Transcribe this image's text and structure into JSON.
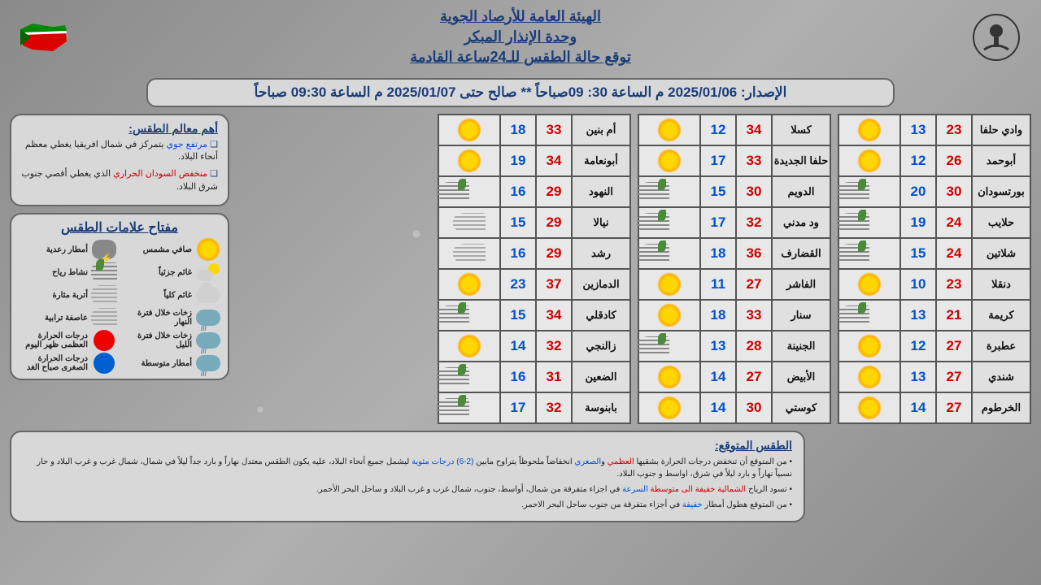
{
  "header": {
    "title1": "الهيئة العامة للأرصاد الجوية",
    "title2": "وحدة الإنذار المبكر",
    "title3": "توقع حالة الطقس للـ24ساعة القادمة"
  },
  "issue": "الإصدار: 2025/01/06 م الساعة 30: 09صباحاً ** صالح حتى 2025/01/07 م الساعة 09:30 صباحاً",
  "col1": [
    {
      "city": "وادي حلفا",
      "hi": 23,
      "lo": 13,
      "ic": "sun"
    },
    {
      "city": "أبوحمد",
      "hi": 26,
      "lo": 12,
      "ic": "sun"
    },
    {
      "city": "بورتسودان",
      "hi": 30,
      "lo": 20,
      "ic": "wind"
    },
    {
      "city": "حلايب",
      "hi": 24,
      "lo": 19,
      "ic": "wind"
    },
    {
      "city": "شلاتين",
      "hi": 24,
      "lo": 15,
      "ic": "wind"
    },
    {
      "city": "دنقلا",
      "hi": 23,
      "lo": 10,
      "ic": "sun"
    },
    {
      "city": "كريمة",
      "hi": 21,
      "lo": 13,
      "ic": "wind"
    },
    {
      "city": "عطبرة",
      "hi": 27,
      "lo": 12,
      "ic": "sun"
    },
    {
      "city": "شندي",
      "hi": 27,
      "lo": 13,
      "ic": "sun"
    },
    {
      "city": "الخرطوم",
      "hi": 27,
      "lo": 14,
      "ic": "sun"
    }
  ],
  "col2": [
    {
      "city": "كسلا",
      "hi": 34,
      "lo": 12,
      "ic": "sun"
    },
    {
      "city": "حلفا الجديدة",
      "hi": 33,
      "lo": 17,
      "ic": "sun"
    },
    {
      "city": "الدويم",
      "hi": 30,
      "lo": 15,
      "ic": "wind"
    },
    {
      "city": "ود مدني",
      "hi": 32,
      "lo": 17,
      "ic": "wind"
    },
    {
      "city": "القضارف",
      "hi": 36,
      "lo": 18,
      "ic": "wind"
    },
    {
      "city": "الفاشر",
      "hi": 27,
      "lo": 11,
      "ic": "sun"
    },
    {
      "city": "سنار",
      "hi": 33,
      "lo": 18,
      "ic": "sun"
    },
    {
      "city": "الجنينة",
      "hi": 28,
      "lo": 13,
      "ic": "wind"
    },
    {
      "city": "الأبيض",
      "hi": 27,
      "lo": 14,
      "ic": "sun"
    },
    {
      "city": "كوستي",
      "hi": 30,
      "lo": 14,
      "ic": "sun"
    }
  ],
  "col3": [
    {
      "city": "أم بنين",
      "hi": 33,
      "lo": 18,
      "ic": "sun"
    },
    {
      "city": "أبونعامة",
      "hi": 34,
      "lo": 19,
      "ic": "sun"
    },
    {
      "city": "النهود",
      "hi": 29,
      "lo": 16,
      "ic": "wind"
    },
    {
      "city": "نيالا",
      "hi": 29,
      "lo": 15,
      "ic": "dust"
    },
    {
      "city": "رشد",
      "hi": 29,
      "lo": 16,
      "ic": "dust"
    },
    {
      "city": "الدمازين",
      "hi": 37,
      "lo": 23,
      "ic": "sun"
    },
    {
      "city": "كادقلي",
      "hi": 34,
      "lo": 15,
      "ic": "wind"
    },
    {
      "city": "زالنجي",
      "hi": 32,
      "lo": 14,
      "ic": "sun"
    },
    {
      "city": "الضعين",
      "hi": 31,
      "lo": 16,
      "ic": "wind"
    },
    {
      "city": "بابنوسة",
      "hi": 32,
      "lo": 17,
      "ic": "wind"
    }
  ],
  "features": {
    "title": "أهم معالم الطقس:",
    "items": [
      "مرتفع جوي يتمركز في شمال افريقيا يغطي معظم أنحاء البلاد.",
      "منخفض السودان الحراري الذي يغطي أقصي جنوب شرق البلاد."
    ]
  },
  "legend": {
    "title": "مفتاح علامات الطقس",
    "items": [
      {
        "label": "صافي مشمس",
        "ic": "sun"
      },
      {
        "label": "أمطار رعدية",
        "ic": "storm"
      },
      {
        "label": "غائم جزئياً",
        "ic": "pc"
      },
      {
        "label": "نشاط رياح",
        "ic": "wind"
      },
      {
        "label": "غائم كلياً",
        "ic": "cloud"
      },
      {
        "label": "أتربة مثارة",
        "ic": "dust"
      },
      {
        "label": "زخات خلال فترة النهار",
        "ic": "rain"
      },
      {
        "label": "عاصفة ترابية",
        "ic": "dust"
      },
      {
        "label": "زخات خلال فترة الليل",
        "ic": "rain"
      },
      {
        "label": "درجات الحرارة العظمى ظهر اليوم",
        "ic": "red"
      },
      {
        "label": "أمطار متوسطة",
        "ic": "rain"
      },
      {
        "label": "درجات الحرارة الصغرى صباح الغد",
        "ic": "blue"
      }
    ]
  },
  "forecast": {
    "title": "الطقس المتوقع:",
    "items": [
      "من المتوقع أن تنخفض درجات الحرارة بشقيها العظمي والصغري انخفاضاً ملحوظاً يتراوح مابين (2-6) درجات مئوية ليشمل جميع أنحاء البلاد، عليه يكون الطقس معتدل نهاراً و بارد جداً ليلاً في شمال، شمال غرب و غرب البلاد و حار نسبياً نهاراً و بارد ليلاً في شرق، اواسط و جنوب البلاد.",
      "تسود الرياح الشمالية خفيفة الى متوسطة السرعة في اجزاء متفرقة من شمال، أواسط، جنوب، شمال غرب و غرب البلاد و ساحل البحر الأحمر.",
      "من المتوقع هطول أمطار خفيفة في أجزاء متفرقة من جنوب ساحل البحر الاحمر."
    ]
  }
}
